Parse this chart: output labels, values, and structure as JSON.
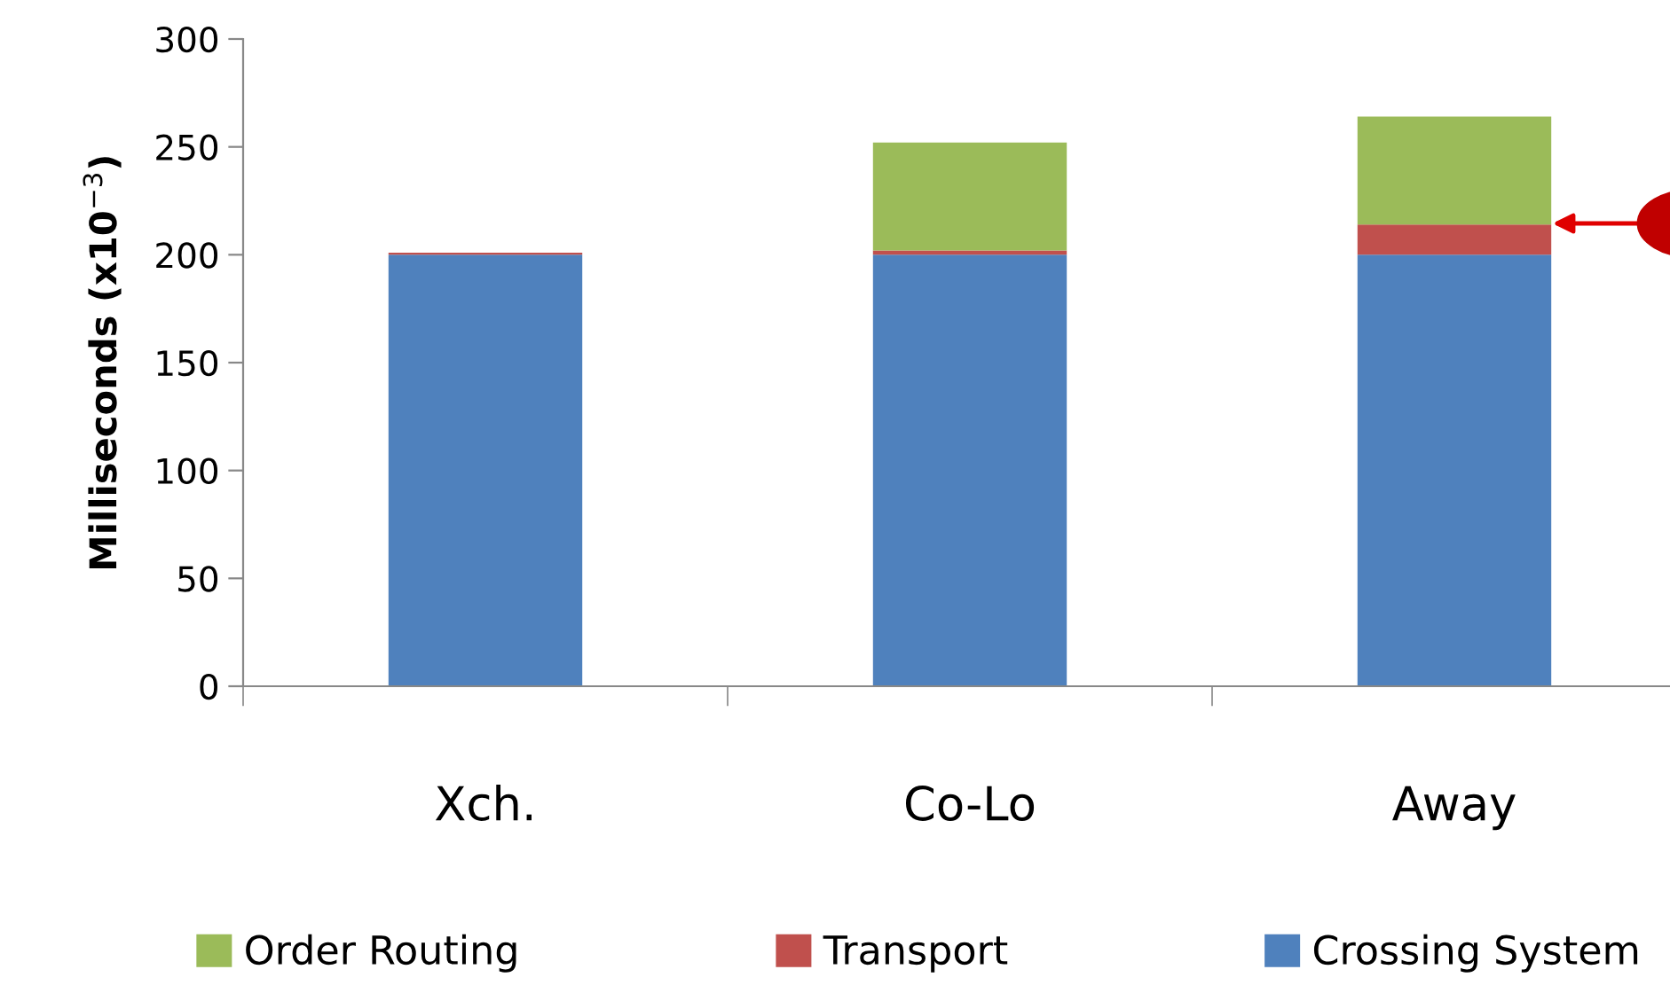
{
  "chart_data": {
    "type": "bar",
    "stacked": true,
    "ylabel": "Milliseconds (x10$^{−3}$)",
    "categories": [
      "Xch.",
      "Co-Lo",
      "Away"
    ],
    "series": [
      {
        "name": "Crossing System",
        "color": "#4f81bd",
        "values": [
          200,
          200,
          200
        ]
      },
      {
        "name": "Transport",
        "color": "#c0504d",
        "values": [
          1,
          2,
          14
        ]
      },
      {
        "name": "Order Routing",
        "color": "#9bbb59",
        "values": [
          0,
          50,
          50
        ]
      }
    ],
    "ylim": [
      0,
      300
    ],
    "yticks": [
      0,
      50,
      100,
      150,
      200,
      250,
      300
    ],
    "grid": false,
    "legend": "bottom"
  }
}
